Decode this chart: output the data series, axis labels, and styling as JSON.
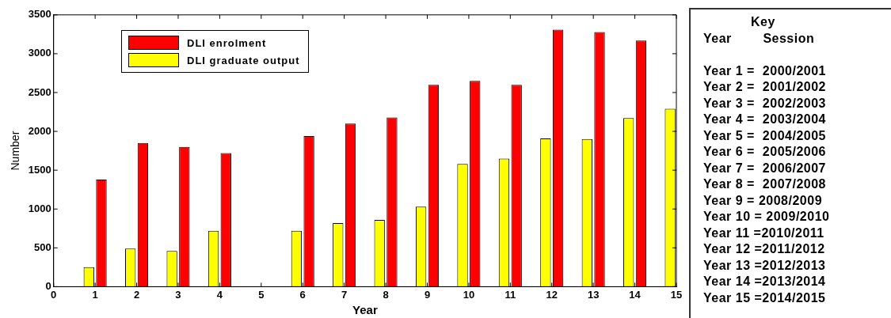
{
  "chart_data": {
    "type": "bar",
    "xlabel": "Year",
    "ylabel": "Number",
    "x": [
      1,
      2,
      3,
      4,
      5,
      6,
      7,
      8,
      9,
      10,
      11,
      12,
      13,
      14,
      15
    ],
    "series": [
      {
        "name": "DLI enrolment",
        "color": "#ff0000",
        "values": [
          1380,
          1850,
          1800,
          1720,
          null,
          1940,
          2100,
          2180,
          2600,
          2650,
          2600,
          3310,
          3280,
          3170,
          null
        ]
      },
      {
        "name": "DLI graduate output",
        "color": "#ffff00",
        "values": [
          250,
          490,
          460,
          720,
          null,
          720,
          820,
          860,
          1030,
          1580,
          1650,
          1910,
          1900,
          2170,
          2290
        ]
      }
    ],
    "xlim": [
      0,
      15
    ],
    "xticks": [
      0,
      1,
      2,
      3,
      4,
      5,
      6,
      7,
      8,
      9,
      10,
      11,
      12,
      13,
      14,
      15
    ],
    "ylim": [
      0,
      3500
    ],
    "yticks": [
      0,
      500,
      1000,
      1500,
      2000,
      2500,
      3000,
      3500
    ],
    "grid": false,
    "legend": "top left",
    "annotations": [
      "Key",
      "Year        Session",
      "Year 1 =  2000/2001",
      "Year 2 =  2001/2002",
      "Year 3 =  2002/2003",
      "Year 4 =  2003/2004",
      "Year 5 =  2004/2005",
      "Year 6 =  2005/2006",
      "Year 7 =  2006/2007",
      "Year 8 =  2007/2008",
      "Year 9 = 2008/2009",
      "Year 10 = 2009/2010",
      "Year 11 =2010/2011",
      "Year 12 =2011/2012",
      "Year 13 =2012/2013",
      "Year 14 =2013/2014",
      "Year 15 =2014/2015"
    ]
  }
}
